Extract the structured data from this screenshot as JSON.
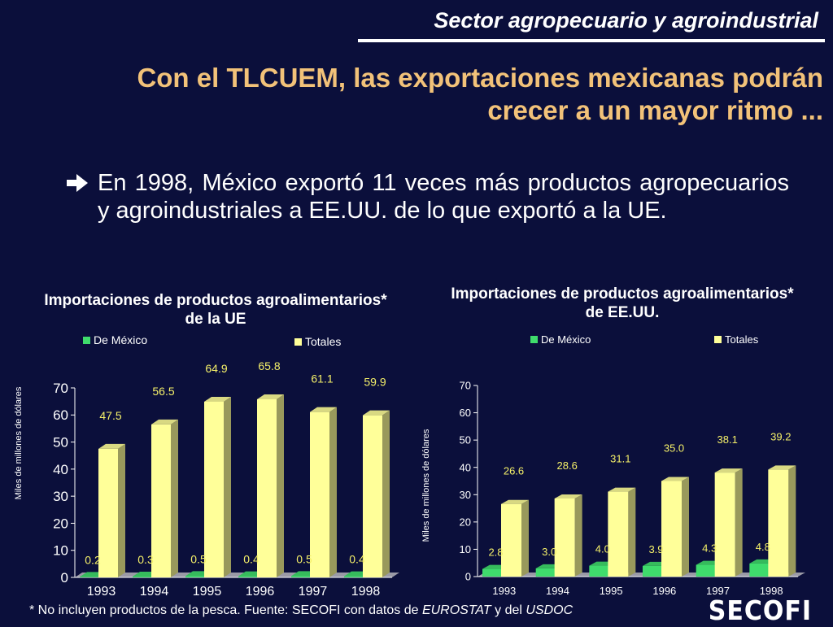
{
  "header": {
    "section_title": "Sector agropecuario y agroindustrial",
    "headline_line1": "Con el TLCUEM, las exportaciones mexicanas podrán",
    "headline_line2": "crecer a un mayor ritmo ..."
  },
  "bullet": {
    "text": "En 1998, México exportó 11 veces más productos agropecuarios y agroindustriales a EE.UU. de lo que exportó a la UE."
  },
  "footnote": {
    "prefix": "* No incluyen productos de la pesca. Fuente: SECOFI con datos de ",
    "source1": "EUROSTAT",
    "middle": " y del ",
    "source2": "USDOC"
  },
  "logo": {
    "text": "SECOFI"
  },
  "colors": {
    "background": "#0b0f3b",
    "headline": "#f2c279",
    "data_label": "#f5f069",
    "mexico_series": "#3fdc6c",
    "totales_series": "#ffff99"
  },
  "chart_data": [
    {
      "type": "bar",
      "title_line1": "Importaciones de productos agroalimentarios*",
      "title_line2": "de  la UE",
      "ylabel": "Miles de millones de dólares",
      "xlabel": "",
      "ylim": [
        0,
        70
      ],
      "yticks": [
        0,
        10,
        20,
        30,
        40,
        50,
        60,
        70
      ],
      "categories": [
        "1993",
        "1994",
        "1995",
        "1996",
        "1997",
        "1998"
      ],
      "legend_position": "top",
      "series": [
        {
          "name": "De México",
          "values": [
            0.2,
            0.3,
            0.5,
            0.4,
            0.5,
            0.4
          ],
          "labels": [
            "0.2",
            "0.3",
            "0.5",
            "0.4",
            "0.5",
            "0.4"
          ]
        },
        {
          "name": "Totales",
          "values": [
            47.5,
            56.5,
            64.9,
            65.8,
            61.1,
            59.9
          ],
          "labels": [
            "47.5",
            "56.5",
            "64.9",
            "65.8",
            "61.1",
            "59.9"
          ]
        }
      ]
    },
    {
      "type": "bar",
      "title_line1": "Importaciones de  productos agroalimentarios*",
      "title_line2": "de EE.UU.",
      "ylabel": "Miles de millones de dólares",
      "xlabel": "",
      "ylim": [
        0,
        70
      ],
      "yticks": [
        0,
        10,
        20,
        30,
        40,
        50,
        60,
        70
      ],
      "categories": [
        "1993",
        "1994",
        "1995",
        "1996",
        "1997",
        "1998"
      ],
      "legend_position": "top",
      "series": [
        {
          "name": "De México",
          "values": [
            2.8,
            3.0,
            4.0,
            3.9,
            4.3,
            4.8
          ],
          "labels": [
            "2.8",
            "3.0",
            "4.0",
            "3.9",
            "4.3",
            "4.8"
          ]
        },
        {
          "name": "Totales",
          "values": [
            26.6,
            28.6,
            31.1,
            35.0,
            38.1,
            39.2
          ],
          "labels": [
            "26.6",
            "28.6",
            "31.1",
            "35.0",
            "38.1",
            "39.2"
          ]
        }
      ]
    }
  ]
}
